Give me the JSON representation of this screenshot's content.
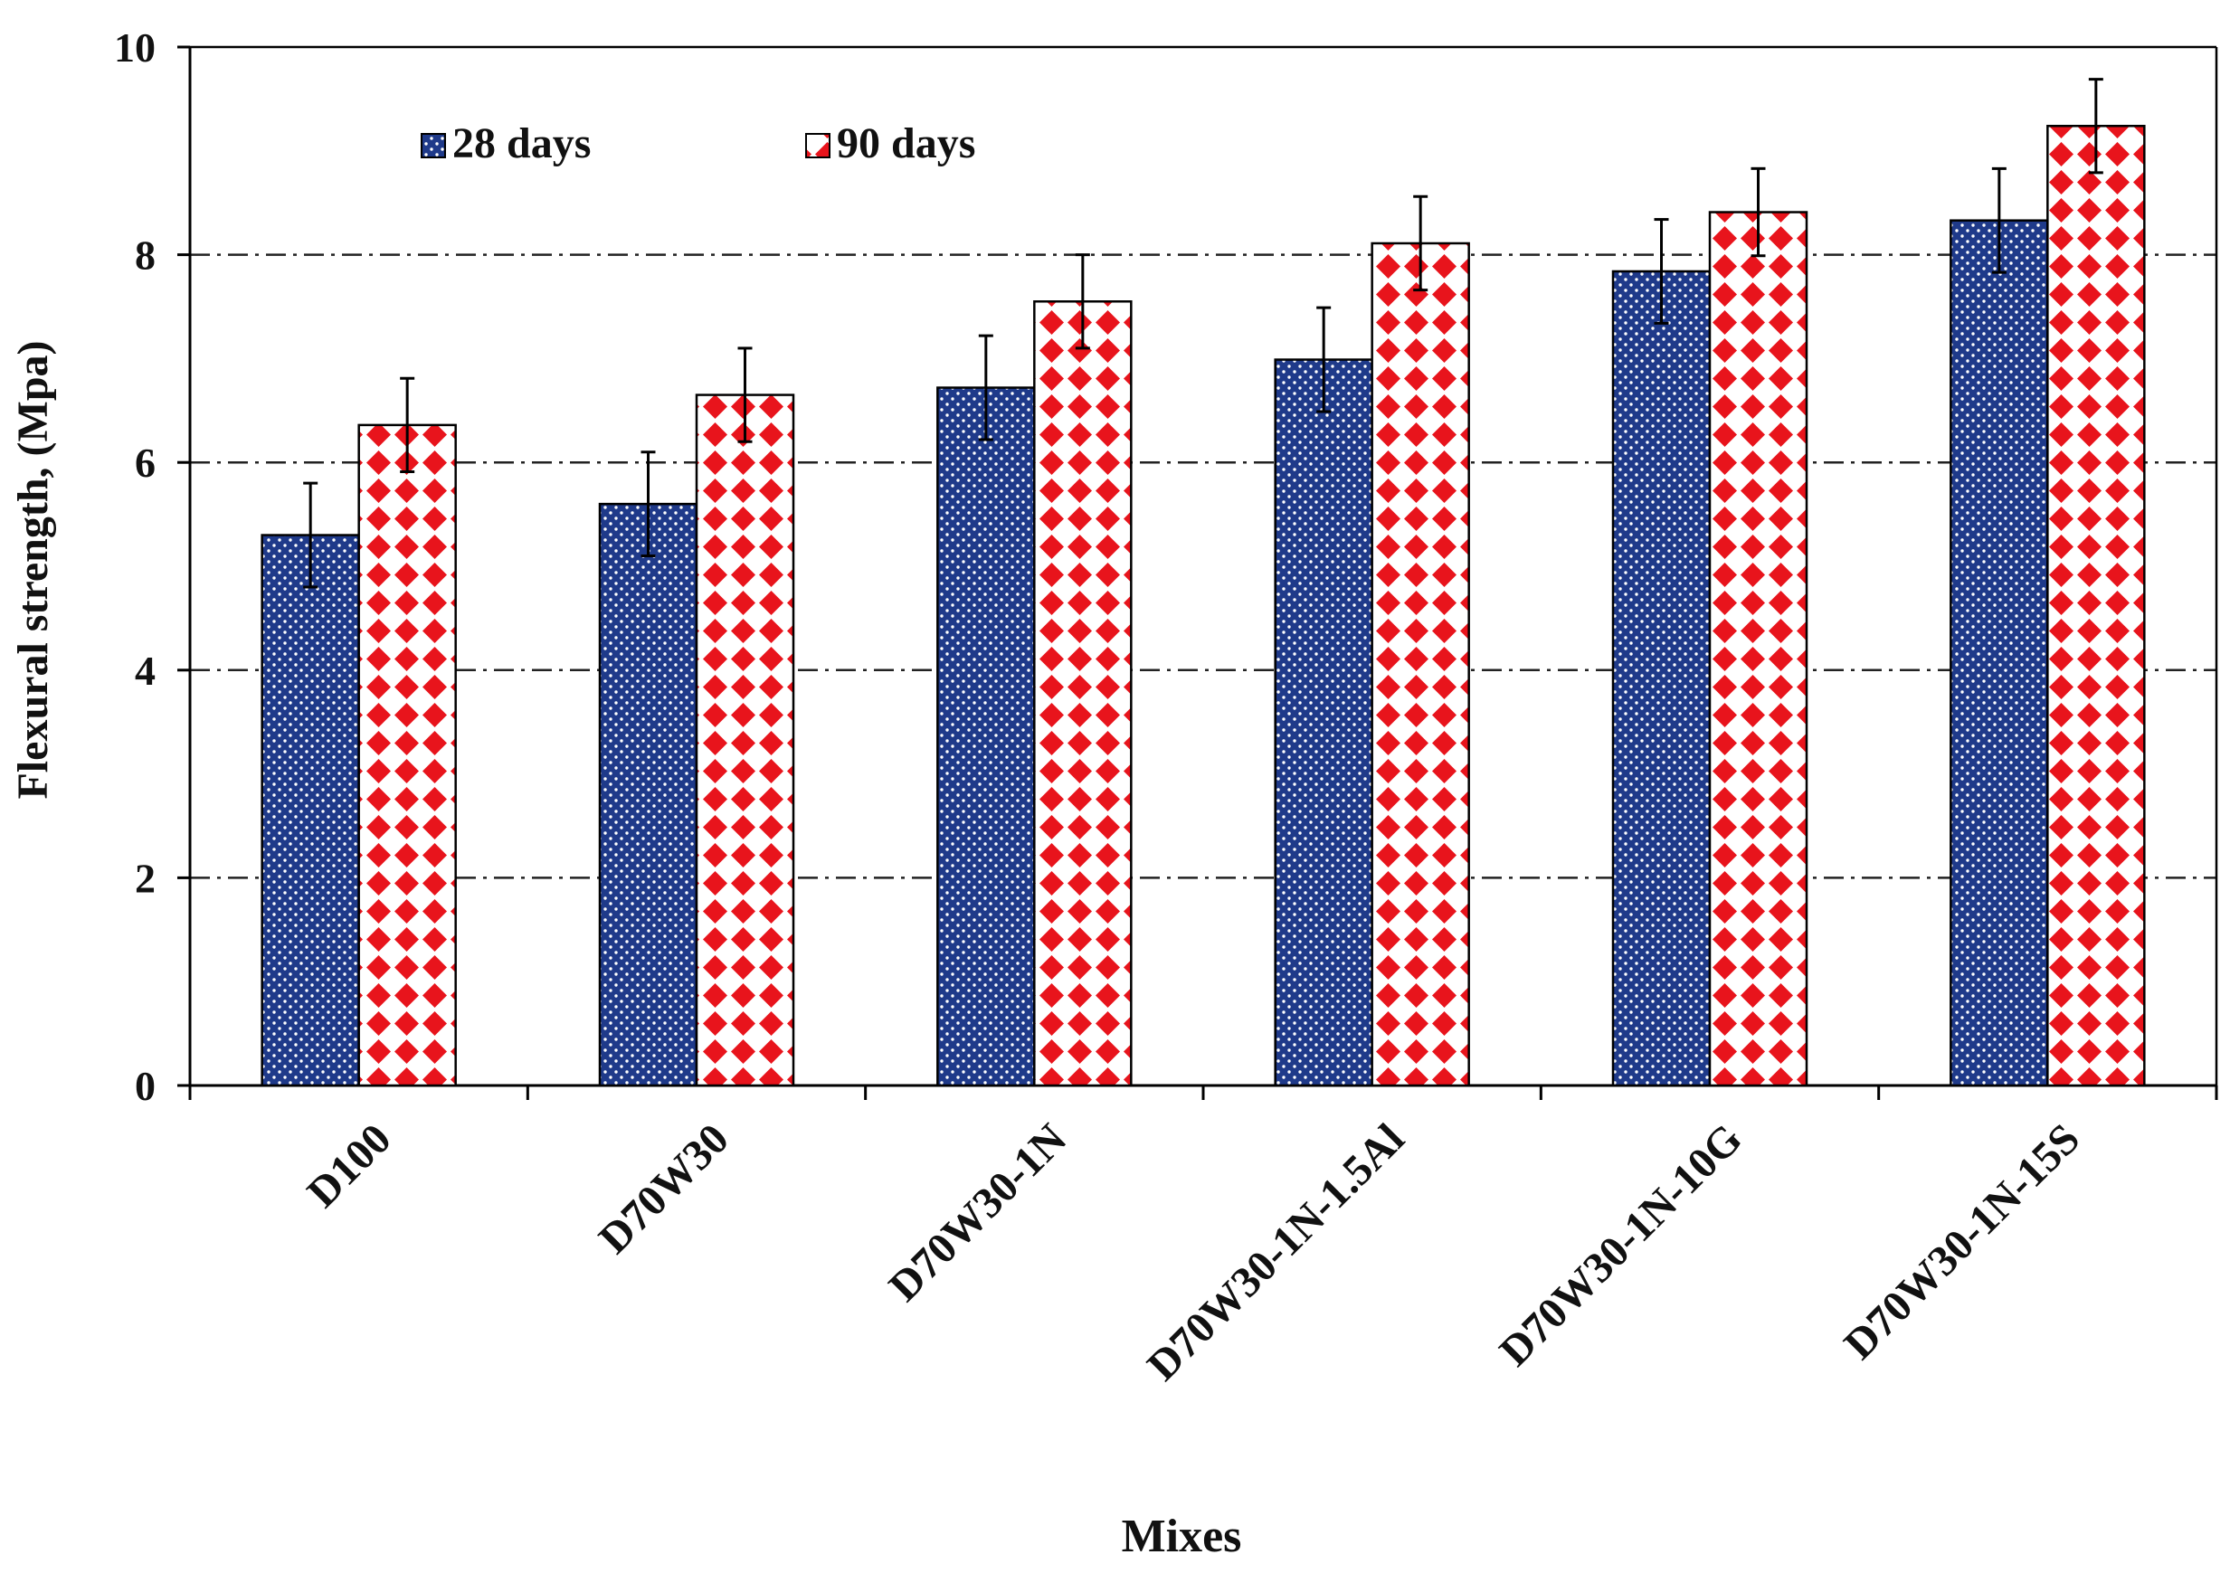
{
  "chart_data": {
    "type": "bar",
    "title": "",
    "xlabel": "Mixes",
    "ylabel": "Flexural strength, (Mpa)",
    "ylim": [
      0,
      10
    ],
    "yticks": [
      "0",
      "2",
      "4",
      "6",
      "8",
      "10"
    ],
    "grid": "horizontal dash-dot at 2, 4, 6, 8",
    "legend_position": "top-left",
    "categories": [
      "D100",
      "D70W30",
      "D70W30-1N",
      "D70W30-1N-1.5Al",
      "D70W30-1N-10G",
      "D70W30-1N-15S"
    ],
    "series": [
      {
        "name": "28 days",
        "values": [
          5.3,
          5.6,
          6.72,
          6.99,
          7.84,
          8.33
        ],
        "error": [
          0.5,
          0.5,
          0.5,
          0.5,
          0.5,
          0.5
        ],
        "color": "#1f3a8a",
        "pattern": "dotted"
      },
      {
        "name": "90 days",
        "values": [
          6.36,
          6.65,
          7.55,
          8.11,
          8.41,
          9.24
        ],
        "error": [
          0.45,
          0.45,
          0.45,
          0.45,
          0.42,
          0.45
        ],
        "color": "#e8141c",
        "pattern": "diamond"
      }
    ]
  }
}
